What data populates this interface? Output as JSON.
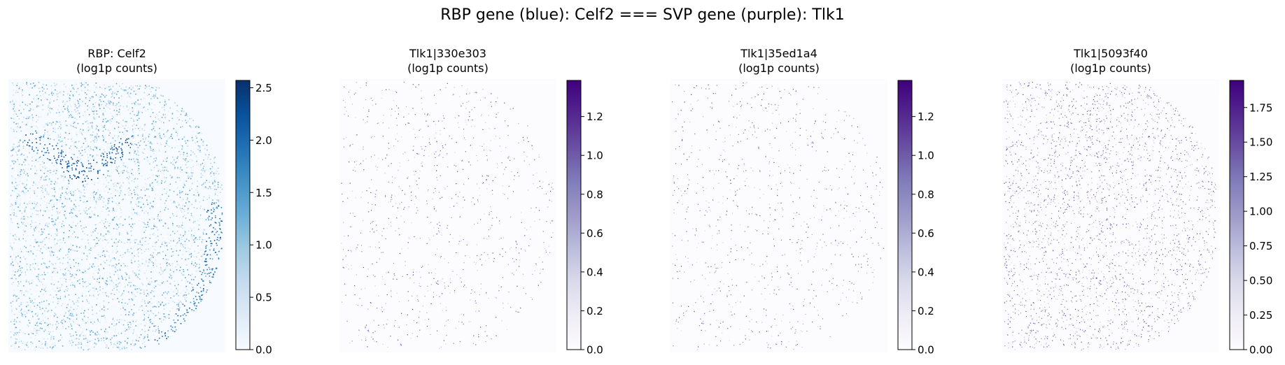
{
  "figure": {
    "suptitle": "RBP gene (blue): Celf2 === SVP gene (purple): Tlk1"
  },
  "chart_data": [
    {
      "type": "heatmap",
      "title_line1": "RBP: Celf2",
      "title_line2": "(log1p counts)",
      "colormap": "Blues",
      "colors": [
        "#f7fbff",
        "#deebf7",
        "#c6dbef",
        "#9ecae1",
        "#6baed6",
        "#4292c6",
        "#2171b5",
        "#08519c",
        "#08306b"
      ],
      "vmin": 0.0,
      "vmax": 2.57,
      "ticks": [
        0.0,
        0.5,
        1.0,
        1.5,
        2.0,
        2.5
      ],
      "tick_labels": [
        "0.0",
        "0.5",
        "1.0",
        "1.5",
        "2.0",
        "2.5"
      ],
      "axes_visible": false
    },
    {
      "type": "heatmap",
      "title_line1": "Tlk1|330e303",
      "title_line2": "(log1p counts)",
      "colormap": "Purples",
      "colors": [
        "#fcfbfd",
        "#efedf5",
        "#dadaeb",
        "#bcbddc",
        "#9e9ac8",
        "#807dba",
        "#6a51a3",
        "#54278f",
        "#3f007d"
      ],
      "vmin": 0.0,
      "vmax": 1.386,
      "ticks": [
        0.0,
        0.2,
        0.4,
        0.6,
        0.8,
        1.0,
        1.2
      ],
      "tick_labels": [
        "0.0",
        "0.2",
        "0.4",
        "0.6",
        "0.8",
        "1.0",
        "1.2"
      ],
      "axes_visible": false
    },
    {
      "type": "heatmap",
      "title_line1": "Tlk1|35ed1a4",
      "title_line2": "(log1p counts)",
      "colormap": "Purples",
      "colors": [
        "#fcfbfd",
        "#efedf5",
        "#dadaeb",
        "#bcbddc",
        "#9e9ac8",
        "#807dba",
        "#6a51a3",
        "#54278f",
        "#3f007d"
      ],
      "vmin": 0.0,
      "vmax": 1.386,
      "ticks": [
        0.0,
        0.2,
        0.4,
        0.6,
        0.8,
        1.0,
        1.2
      ],
      "tick_labels": [
        "0.0",
        "0.2",
        "0.4",
        "0.6",
        "0.8",
        "1.0",
        "1.2"
      ],
      "axes_visible": false
    },
    {
      "type": "heatmap",
      "title_line1": "Tlk1|5093f40",
      "title_line2": "(log1p counts)",
      "colormap": "Purples",
      "colors": [
        "#fcfbfd",
        "#efedf5",
        "#dadaeb",
        "#bcbddc",
        "#9e9ac8",
        "#807dba",
        "#6a51a3",
        "#54278f",
        "#3f007d"
      ],
      "vmin": 0.0,
      "vmax": 1.946,
      "ticks": [
        0.0,
        0.25,
        0.5,
        0.75,
        1.0,
        1.25,
        1.5,
        1.75
      ],
      "tick_labels": [
        "0.00",
        "0.25",
        "0.50",
        "0.75",
        "1.00",
        "1.25",
        "1.50",
        "1.75"
      ],
      "axes_visible": false
    }
  ]
}
